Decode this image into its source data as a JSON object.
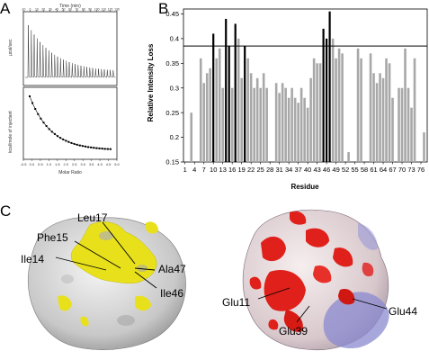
{
  "panels": {
    "a": "A",
    "b": "B",
    "c": "C"
  },
  "itc": {
    "top_title": "Time (min)",
    "top_ticks": [
      "-10",
      "0",
      "10",
      "20",
      "30",
      "40",
      "50",
      "60",
      "70",
      "80",
      "90",
      "100",
      "110",
      "120",
      "130"
    ],
    "top_ylabel": "µcal/sec",
    "bottom_ylabel": "kcal/mole of injectant",
    "xlabel": "Molar Ratio",
    "x_ticks": [
      "-0.5",
      "0.0",
      "0.5",
      "1.0",
      "1.5",
      "2.0",
      "2.5",
      "3.0",
      "3.5",
      "4.0",
      "4.5",
      "5.0"
    ]
  },
  "chart_data": {
    "type": "bar",
    "title": "",
    "xlabel": "Residue",
    "ylabel": "Relative Intensity Loss",
    "ylim": [
      0.15,
      0.46
    ],
    "y_ticks": [
      0.15,
      0.2,
      0.25,
      0.3,
      0.35,
      0.4,
      0.45
    ],
    "x_tick_labels": [
      1,
      4,
      7,
      10,
      13,
      16,
      19,
      22,
      25,
      28,
      31,
      34,
      37,
      40,
      43,
      46,
      49,
      52,
      55,
      58,
      61,
      64,
      67,
      70,
      73,
      76
    ],
    "threshold": 0.385,
    "bars": [
      {
        "residue": 3,
        "value": 0.25
      },
      {
        "residue": 6,
        "value": 0.36
      },
      {
        "residue": 7,
        "value": 0.31
      },
      {
        "residue": 8,
        "value": 0.33
      },
      {
        "residue": 9,
        "value": 0.34
      },
      {
        "residue": 10,
        "value": 0.41,
        "highlight": true
      },
      {
        "residue": 11,
        "value": 0.36
      },
      {
        "residue": 12,
        "value": 0.38
      },
      {
        "residue": 13,
        "value": 0.3
      },
      {
        "residue": 14,
        "value": 0.44,
        "highlight": true
      },
      {
        "residue": 15,
        "value": 0.385,
        "highlight": true
      },
      {
        "residue": 16,
        "value": 0.3
      },
      {
        "residue": 17,
        "value": 0.43,
        "highlight": true
      },
      {
        "residue": 18,
        "value": 0.4
      },
      {
        "residue": 19,
        "value": 0.32
      },
      {
        "residue": 20,
        "value": 0.385,
        "highlight": true
      },
      {
        "residue": 21,
        "value": 0.36
      },
      {
        "residue": 22,
        "value": 0.33
      },
      {
        "residue": 23,
        "value": 0.3
      },
      {
        "residue": 24,
        "value": 0.32
      },
      {
        "residue": 25,
        "value": 0.3
      },
      {
        "residue": 26,
        "value": 0.33
      },
      {
        "residue": 27,
        "value": 0.3
      },
      {
        "residue": 30,
        "value": 0.31
      },
      {
        "residue": 31,
        "value": 0.29
      },
      {
        "residue": 32,
        "value": 0.31
      },
      {
        "residue": 33,
        "value": 0.3
      },
      {
        "residue": 34,
        "value": 0.28
      },
      {
        "residue": 35,
        "value": 0.3
      },
      {
        "residue": 36,
        "value": 0.28
      },
      {
        "residue": 37,
        "value": 0.27
      },
      {
        "residue": 38,
        "value": 0.3
      },
      {
        "residue": 39,
        "value": 0.28
      },
      {
        "residue": 40,
        "value": 0.26
      },
      {
        "residue": 41,
        "value": 0.32
      },
      {
        "residue": 42,
        "value": 0.36
      },
      {
        "residue": 43,
        "value": 0.35
      },
      {
        "residue": 44,
        "value": 0.35
      },
      {
        "residue": 45,
        "value": 0.42,
        "highlight": true
      },
      {
        "residue": 46,
        "value": 0.4,
        "highlight": true
      },
      {
        "residue": 47,
        "value": 0.455,
        "highlight": true
      },
      {
        "residue": 48,
        "value": 0.4
      },
      {
        "residue": 49,
        "value": 0.36
      },
      {
        "residue": 50,
        "value": 0.38
      },
      {
        "residue": 51,
        "value": 0.37
      },
      {
        "residue": 53,
        "value": 0.17
      },
      {
        "residue": 56,
        "value": 0.38
      },
      {
        "residue": 57,
        "value": 0.36
      },
      {
        "residue": 60,
        "value": 0.37
      },
      {
        "residue": 61,
        "value": 0.33
      },
      {
        "residue": 62,
        "value": 0.31
      },
      {
        "residue": 63,
        "value": 0.33
      },
      {
        "residue": 64,
        "value": 0.32
      },
      {
        "residue": 65,
        "value": 0.36
      },
      {
        "residue": 66,
        "value": 0.35
      },
      {
        "residue": 67,
        "value": 0.28
      },
      {
        "residue": 69,
        "value": 0.3
      },
      {
        "residue": 70,
        "value": 0.3
      },
      {
        "residue": 71,
        "value": 0.38
      },
      {
        "residue": 72,
        "value": 0.3
      },
      {
        "residue": 73,
        "value": 0.26
      },
      {
        "residue": 74,
        "value": 0.36
      },
      {
        "residue": 77,
        "value": 0.21
      }
    ]
  },
  "surface_left_labels": [
    "Leu17",
    "Phe15",
    "Ile14",
    "Ala47",
    "Ile46"
  ],
  "surface_right_labels": [
    "Glu11",
    "Glu44",
    "Glu39"
  ],
  "colors": {
    "highlight_bar": "#000000",
    "bar": "#a8a8a8",
    "hydrophobic": "#e8e01a",
    "acidic": "#e0201a",
    "basic": "#8a8ad0"
  }
}
